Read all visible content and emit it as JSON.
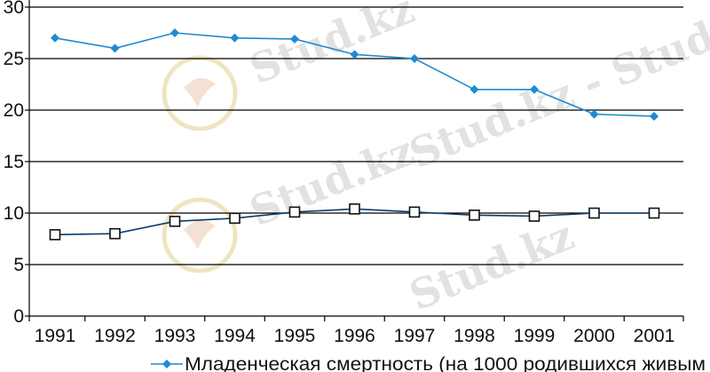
{
  "chart_data": {
    "type": "line",
    "x": [
      "1991",
      "1992",
      "1993",
      "1994",
      "1995",
      "1996",
      "1997",
      "1998",
      "1999",
      "2000",
      "2001"
    ],
    "ylim": [
      0,
      30
    ],
    "yticks": [
      "0",
      "5",
      "10",
      "15",
      "20",
      "25",
      "30"
    ],
    "grid": true,
    "legend_position": "bottom",
    "series": [
      {
        "name": "Младенческая смертность (на 1000 родившихся живым",
        "values": [
          27.0,
          26.0,
          27.5,
          27.0,
          26.9,
          25.4,
          25.0,
          22.0,
          22.0,
          19.6,
          19.4
        ],
        "color": "#1f8ad0",
        "marker": "diamond"
      },
      {
        "name": "",
        "values": [
          7.9,
          8.0,
          9.2,
          9.5,
          10.1,
          10.4,
          10.1,
          9.8,
          9.7,
          10.0,
          10.0
        ],
        "color": "#0b3a6b",
        "marker": "square"
      }
    ]
  },
  "watermark": {
    "text": "Stud.kz",
    "dash_text": "Stud.kz - Stud.kz"
  }
}
